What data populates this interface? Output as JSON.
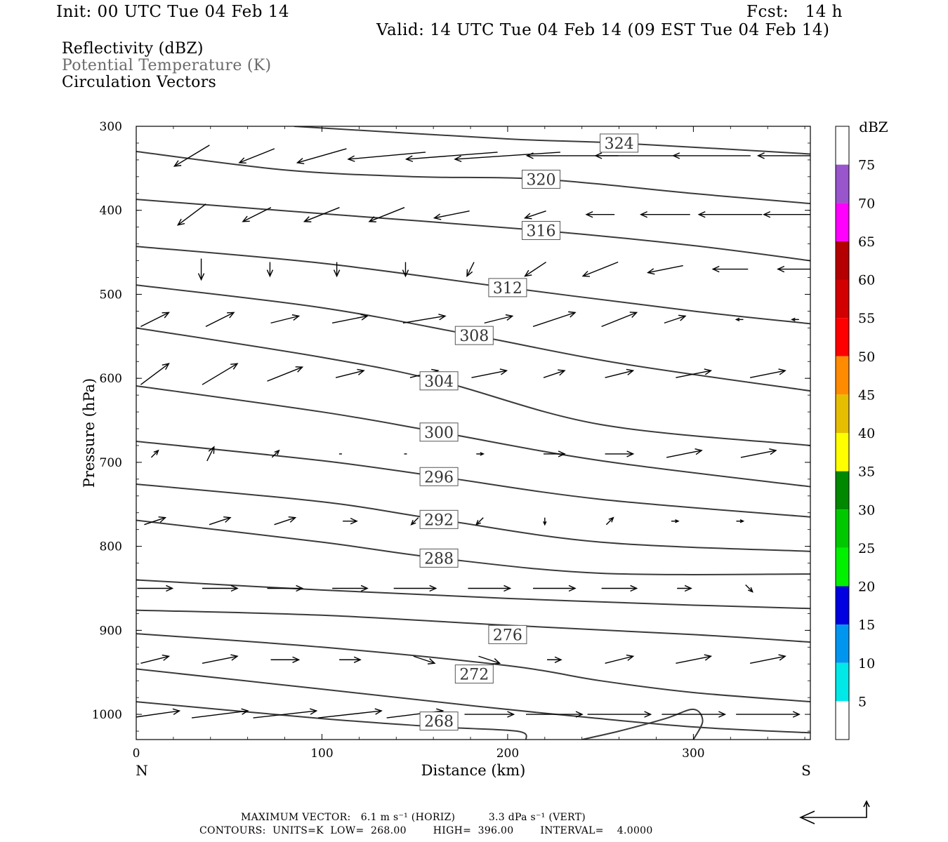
{
  "header": {
    "init": "Init: 00 UTC Tue 04 Feb 14",
    "fcst": "Fcst:   14 h",
    "valid": "Valid: 14 UTC Tue 04 Feb 14 (09 EST Tue 04 Feb 14)"
  },
  "legend": {
    "reflectivity": "Reflectivity (dBZ)",
    "theta": "Potential Temperature (K)",
    "vectors": "Circulation Vectors"
  },
  "footer": {
    "max_vector": "MAXIMUM VECTOR:   6.1 m s⁻¹ (HORIZ)          3.3 dPa s⁻¹ (VERT)",
    "contours": "CONTOURS:  UNITS=K  LOW=  268.00        HIGH=  396.00        INTERVAL=    4.0000"
  },
  "colors": {
    "contour": "#3a3a3a",
    "axis": "#000000"
  },
  "colorbar": {
    "title": "dBZ",
    "labels": [
      "5",
      "10",
      "15",
      "20",
      "25",
      "30",
      "35",
      "40",
      "45",
      "50",
      "55",
      "60",
      "65",
      "70",
      "75"
    ],
    "bins": [
      {
        "lo": 0,
        "hi": 5,
        "color": "#ffffff"
      },
      {
        "lo": 5,
        "hi": 10,
        "color": "#00e8e8"
      },
      {
        "lo": 10,
        "hi": 15,
        "color": "#0096f0"
      },
      {
        "lo": 15,
        "hi": 20,
        "color": "#0000e0"
      },
      {
        "lo": 20,
        "hi": 25,
        "color": "#00f000"
      },
      {
        "lo": 25,
        "hi": 30,
        "color": "#00c800"
      },
      {
        "lo": 30,
        "hi": 35,
        "color": "#008800"
      },
      {
        "lo": 35,
        "hi": 40,
        "color": "#ffff00"
      },
      {
        "lo": 40,
        "hi": 45,
        "color": "#e6be00"
      },
      {
        "lo": 45,
        "hi": 50,
        "color": "#ff8c00"
      },
      {
        "lo": 50,
        "hi": 55,
        "color": "#ff0000"
      },
      {
        "lo": 55,
        "hi": 60,
        "color": "#d20000"
      },
      {
        "lo": 60,
        "hi": 65,
        "color": "#b40000"
      },
      {
        "lo": 65,
        "hi": 70,
        "color": "#ff00ff"
      },
      {
        "lo": 70,
        "hi": 75,
        "color": "#9955cc"
      },
      {
        "lo": 75,
        "hi": 80,
        "color": "#ffffff"
      }
    ]
  },
  "chart_data": {
    "type": "cross-section",
    "xlabel": "Distance (km)",
    "ylabel": "Pressure (hPa)",
    "x_end_left": "N",
    "x_end_right": "S",
    "xlim": [
      0,
      363
    ],
    "ylim": [
      1030,
      300
    ],
    "xticks": [
      0,
      100,
      200,
      300
    ],
    "yticks": [
      300,
      400,
      500,
      600,
      700,
      800,
      900,
      1000
    ],
    "isentropes": [
      {
        "theta": 324,
        "label_at": [
          260,
          320
        ],
        "points": [
          [
            85,
            300
          ],
          [
            200,
            315
          ],
          [
            260,
            320
          ],
          [
            363,
            333
          ]
        ]
      },
      {
        "theta": 320,
        "label_at": [
          218,
          363
        ],
        "points": [
          [
            0,
            330
          ],
          [
            80,
            352
          ],
          [
            150,
            360
          ],
          [
            218,
            363
          ],
          [
            300,
            380
          ],
          [
            363,
            392
          ]
        ]
      },
      {
        "theta": 316,
        "label_at": [
          218,
          424
        ],
        "points": [
          [
            0,
            387
          ],
          [
            100,
            404
          ],
          [
            218,
            424
          ],
          [
            300,
            442
          ],
          [
            363,
            460
          ]
        ]
      },
      {
        "theta": 312,
        "label_at": [
          200,
          492
        ],
        "points": [
          [
            0,
            443
          ],
          [
            100,
            463
          ],
          [
            200,
            492
          ],
          [
            300,
            520
          ],
          [
            363,
            535
          ]
        ]
      },
      {
        "theta": 308,
        "label_at": [
          182,
          549
        ],
        "points": [
          [
            0,
            489
          ],
          [
            100,
            516
          ],
          [
            182,
            549
          ],
          [
            260,
            582
          ],
          [
            363,
            615
          ]
        ]
      },
      {
        "theta": 304,
        "label_at": [
          163,
          603
        ],
        "points": [
          [
            0,
            540
          ],
          [
            100,
            575
          ],
          [
            163,
            603
          ],
          [
            250,
            655
          ],
          [
            363,
            680
          ]
        ]
      },
      {
        "theta": 300,
        "label_at": [
          163,
          664
        ],
        "points": [
          [
            0,
            609
          ],
          [
            100,
            640
          ],
          [
            163,
            664
          ],
          [
            250,
            698
          ],
          [
            363,
            729
          ]
        ]
      },
      {
        "theta": 296,
        "label_at": [
          163,
          717
        ],
        "points": [
          [
            0,
            675
          ],
          [
            100,
            698
          ],
          [
            163,
            717
          ],
          [
            250,
            744
          ],
          [
            363,
            765
          ]
        ]
      },
      {
        "theta": 292,
        "label_at": [
          163,
          768
        ],
        "points": [
          [
            0,
            726
          ],
          [
            100,
            747
          ],
          [
            163,
            768
          ],
          [
            250,
            795
          ],
          [
            363,
            806
          ]
        ]
      },
      {
        "theta": 288,
        "label_at": [
          163,
          814
        ],
        "points": [
          [
            0,
            769
          ],
          [
            100,
            795
          ],
          [
            163,
            814
          ],
          [
            250,
            832
          ],
          [
            363,
            833
          ]
        ]
      },
      {
        "theta": 284,
        "label_at": null,
        "points": [
          [
            0,
            840
          ],
          [
            100,
            852
          ],
          [
            200,
            862
          ],
          [
            300,
            870
          ],
          [
            363,
            874
          ]
        ]
      },
      {
        "theta": 280,
        "label_at": null,
        "points": [
          [
            0,
            876
          ],
          [
            100,
            882
          ],
          [
            200,
            894
          ],
          [
            300,
            905
          ],
          [
            363,
            914
          ]
        ]
      },
      {
        "theta": 276,
        "label_at": [
          200,
          905
        ],
        "points": [
          [
            0,
            904
          ],
          [
            100,
            920
          ],
          [
            200,
            942
          ],
          [
            250,
            960
          ],
          [
            300,
            974
          ],
          [
            363,
            985
          ]
        ]
      },
      {
        "theta": 272,
        "label_at": [
          182,
          952
        ],
        "points": [
          [
            0,
            946
          ],
          [
            100,
            970
          ],
          [
            182,
            990
          ],
          [
            240,
            1003
          ],
          [
            300,
            1015
          ],
          [
            363,
            1022
          ]
        ]
      },
      {
        "theta": 268,
        "label_at": [
          163,
          1008
        ],
        "points": [
          [
            0,
            985
          ],
          [
            100,
            1005
          ],
          [
            163,
            1015
          ],
          [
            205,
            1020
          ],
          [
            210,
            1030
          ]
        ]
      }
    ],
    "closed_contour_272_edge": [
      [
        240,
        1030
      ],
      [
        260,
        1020
      ],
      [
        285,
        1005
      ],
      [
        300,
        994
      ],
      [
        305,
        1008
      ],
      [
        300,
        1030
      ]
    ],
    "vectors": [
      {
        "row": 335,
        "items": [
          [
            30,
            -5,
            -3
          ],
          [
            65,
            -5,
            -2
          ],
          [
            100,
            -7,
            -2
          ],
          [
            135,
            -11,
            -1
          ],
          [
            170,
            -13,
            -1
          ],
          [
            200,
            -15,
            -1
          ],
          [
            235,
            -13,
            0
          ],
          [
            270,
            -12,
            0
          ],
          [
            310,
            -11,
            0
          ],
          [
            350,
            -8,
            0
          ]
        ]
      },
      {
        "row": 405,
        "items": [
          [
            30,
            -4,
            -3
          ],
          [
            65,
            -4,
            -2
          ],
          [
            100,
            -5,
            -2
          ],
          [
            135,
            -5,
            -2
          ],
          [
            170,
            -5,
            -1
          ],
          [
            215,
            -3,
            -1
          ],
          [
            250,
            -4,
            0
          ],
          [
            285,
            -7,
            0
          ],
          [
            320,
            -9,
            0
          ],
          [
            355,
            -9,
            0
          ]
        ]
      },
      {
        "row": 470,
        "items": [
          [
            35,
            0,
            -3
          ],
          [
            72,
            0,
            -2
          ],
          [
            108,
            0,
            -2
          ],
          [
            145,
            0,
            -2
          ],
          [
            180,
            -1,
            -2
          ],
          [
            215,
            -3,
            -2
          ],
          [
            250,
            -5,
            -2
          ],
          [
            285,
            -5,
            -1
          ],
          [
            320,
            -5,
            0
          ],
          [
            355,
            -5,
            0
          ]
        ]
      },
      {
        "row": 530,
        "items": [
          [
            10,
            4,
            2
          ],
          [
            45,
            4,
            2
          ],
          [
            80,
            4,
            1
          ],
          [
            115,
            5,
            1
          ],
          [
            155,
            6,
            1
          ],
          [
            195,
            4,
            1
          ],
          [
            225,
            6,
            2
          ],
          [
            260,
            5,
            2
          ],
          [
            290,
            3,
            1
          ],
          [
            325,
            -1,
            0
          ],
          [
            355,
            -1,
            0
          ]
        ]
      },
      {
        "row": 595,
        "items": [
          [
            10,
            4,
            3
          ],
          [
            45,
            5,
            3
          ],
          [
            80,
            5,
            2
          ],
          [
            115,
            4,
            1
          ],
          [
            155,
            4,
            1
          ],
          [
            190,
            5,
            1
          ],
          [
            225,
            3,
            1
          ],
          [
            260,
            4,
            1
          ],
          [
            300,
            5,
            1
          ],
          [
            340,
            5,
            1
          ]
        ]
      },
      {
        "row": 690,
        "items": [
          [
            10,
            1,
            1
          ],
          [
            40,
            1,
            2
          ],
          [
            75,
            1,
            1
          ],
          [
            110,
            0,
            0
          ],
          [
            145,
            0,
            0
          ],
          [
            185,
            1,
            0
          ],
          [
            225,
            3,
            0
          ],
          [
            260,
            4,
            0
          ],
          [
            295,
            5,
            1
          ],
          [
            335,
            5,
            1
          ]
        ]
      },
      {
        "row": 770,
        "items": [
          [
            10,
            3,
            1
          ],
          [
            45,
            3,
            1
          ],
          [
            80,
            3,
            1
          ],
          [
            115,
            2,
            0
          ],
          [
            150,
            -1,
            -1
          ],
          [
            185,
            -1,
            -1
          ],
          [
            220,
            0,
            -1
          ],
          [
            255,
            1,
            1
          ],
          [
            290,
            1,
            0
          ],
          [
            325,
            1,
            0
          ]
        ]
      },
      {
        "row": 850,
        "items": [
          [
            10,
            5,
            0
          ],
          [
            45,
            5,
            0
          ],
          [
            80,
            5,
            0
          ],
          [
            115,
            5,
            0
          ],
          [
            150,
            6,
            0
          ],
          [
            190,
            6,
            0
          ],
          [
            225,
            6,
            0
          ],
          [
            260,
            5,
            0
          ],
          [
            295,
            2,
            0
          ],
          [
            330,
            1,
            -1
          ]
        ]
      },
      {
        "row": 935,
        "items": [
          [
            10,
            4,
            1
          ],
          [
            45,
            5,
            1
          ],
          [
            80,
            4,
            0
          ],
          [
            115,
            3,
            0
          ],
          [
            155,
            3,
            -1
          ],
          [
            190,
            3,
            -1
          ],
          [
            225,
            2,
            0
          ],
          [
            260,
            4,
            1
          ],
          [
            300,
            5,
            1
          ],
          [
            340,
            5,
            1
          ]
        ]
      },
      {
        "row": 1000,
        "items": [
          [
            10,
            7,
            1
          ],
          [
            45,
            8,
            1
          ],
          [
            80,
            9,
            1
          ],
          [
            115,
            9,
            1
          ],
          [
            150,
            8,
            1
          ],
          [
            190,
            7,
            0
          ],
          [
            225,
            8,
            0
          ],
          [
            260,
            9,
            0
          ],
          [
            300,
            9,
            0
          ],
          [
            340,
            9,
            0
          ]
        ]
      }
    ],
    "grid": false
  }
}
